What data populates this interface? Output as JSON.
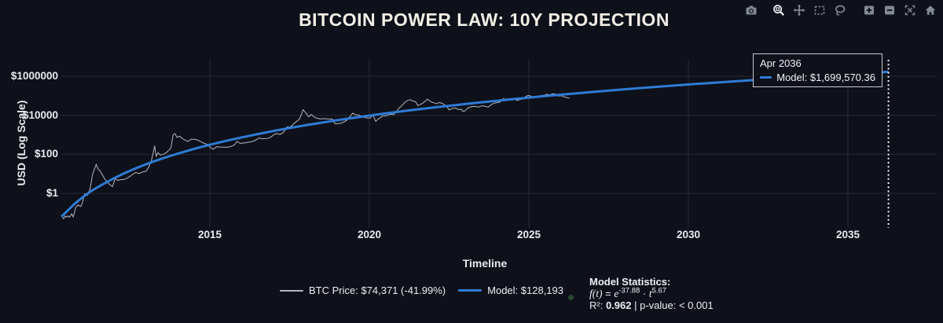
{
  "title": "BITCOIN POWER LAW: 10Y PROJECTION",
  "modebar": {
    "buttons": [
      {
        "id": "camera"
      },
      {
        "id": "zoom",
        "active": true
      },
      {
        "id": "pan"
      },
      {
        "id": "box-select"
      },
      {
        "id": "lasso"
      },
      {
        "id": "zoom-in"
      },
      {
        "id": "zoom-out"
      },
      {
        "id": "autoscale"
      },
      {
        "id": "home"
      }
    ]
  },
  "tooltip": {
    "date": "Apr 2036",
    "model_label": "Model: $1,699,570.36"
  },
  "legend": {
    "items": [
      {
        "name": "btc-price",
        "label": "BTC Price: $74,371 (-41.99%)",
        "color": "#b4b8bf"
      },
      {
        "name": "model",
        "label": "Model: $128,193",
        "color": "#2e7cd6"
      }
    ]
  },
  "stats": {
    "heading": "Model Statistics:",
    "f_left": "f(t)",
    "eq": " = ",
    "e": "e",
    "exp": "-37.88",
    "dot": " · ",
    "t": "t",
    "t_exp": "5.67",
    "r2_prefix": "R²: ",
    "r2": "0.962",
    "r2_suffix": " | p-value: < 0.001"
  },
  "colors": {
    "background": "#0e111a",
    "grid": "#252b37",
    "model": "#2e7cd6",
    "price": "#b4b8bf",
    "projection": "#f5f5f5",
    "tick_text": "#e8eaee",
    "modebar_icon": "#848a94",
    "modebar_active": "#e9ecf1"
  },
  "chart_data": {
    "type": "line",
    "title": "BITCOIN POWER LAW: 10Y PROJECTION",
    "xlabel": "Timeline",
    "ylabel": "USD (Log Scale)",
    "grid": true,
    "legend_position": "bottom",
    "x_ticks": [
      2015,
      2020,
      2025,
      2030,
      2035
    ],
    "y_ticks": [
      {
        "label": "$1",
        "value": 1
      },
      {
        "label": "$100",
        "value": 100
      },
      {
        "label": "$10000",
        "value": 10000
      },
      {
        "label": "$1000000",
        "value": 1000000
      }
    ],
    "x_range": [
      2010.3,
      2036.9
    ],
    "y_range_log10": [
      -1.65,
      6.89
    ],
    "projection": {
      "x": 2036.27,
      "date": "Apr 2036",
      "model_value": 1699570.36
    },
    "model_formula": {
      "ln_coefficient": -37.88,
      "exponent": 5.67,
      "r2": 0.962,
      "p_value": "< 0.001"
    },
    "series": [
      {
        "name": "BTC Price",
        "color": "#b4b8bf",
        "width": 1,
        "points": [
          [
            2010.37,
            0.06
          ],
          [
            2010.42,
            0.05
          ],
          [
            2010.46,
            0.07
          ],
          [
            2010.5,
            0.06
          ],
          [
            2010.55,
            0.07
          ],
          [
            2010.6,
            0.06
          ],
          [
            2010.67,
            0.09
          ],
          [
            2010.72,
            0.06
          ],
          [
            2010.8,
            0.2
          ],
          [
            2010.88,
            0.25
          ],
          [
            2010.95,
            0.21
          ],
          [
            2011.0,
            0.3
          ],
          [
            2011.08,
            0.95
          ],
          [
            2011.17,
            0.8
          ],
          [
            2011.25,
            1.8
          ],
          [
            2011.32,
            8.9
          ],
          [
            2011.44,
            31
          ],
          [
            2011.5,
            17
          ],
          [
            2011.56,
            14
          ],
          [
            2011.63,
            9
          ],
          [
            2011.72,
            5
          ],
          [
            2011.83,
            3.1
          ],
          [
            2011.95,
            2.2
          ],
          [
            2012.03,
            5.8
          ],
          [
            2012.1,
            4.6
          ],
          [
            2012.2,
            5.0
          ],
          [
            2012.33,
            5.2
          ],
          [
            2012.45,
            6.6
          ],
          [
            2012.6,
            9.8
          ],
          [
            2012.68,
            11.9
          ],
          [
            2012.78,
            10.3
          ],
          [
            2012.9,
            12.6
          ],
          [
            2013.0,
            13.4
          ],
          [
            2013.08,
            21
          ],
          [
            2013.17,
            47
          ],
          [
            2013.27,
            266
          ],
          [
            2013.32,
            78
          ],
          [
            2013.38,
            122
          ],
          [
            2013.45,
            91
          ],
          [
            2013.55,
            101
          ],
          [
            2013.65,
            127
          ],
          [
            2013.78,
            210
          ],
          [
            2013.85,
            1010
          ],
          [
            2013.91,
            1150
          ],
          [
            2013.97,
            735
          ],
          [
            2014.05,
            845
          ],
          [
            2014.15,
            625
          ],
          [
            2014.3,
            450
          ],
          [
            2014.42,
            590
          ],
          [
            2014.55,
            585
          ],
          [
            2014.68,
            480
          ],
          [
            2014.8,
            375
          ],
          [
            2014.93,
            320
          ],
          [
            2015.03,
            215
          ],
          [
            2015.1,
            180
          ],
          [
            2015.22,
            245
          ],
          [
            2015.35,
            235
          ],
          [
            2015.5,
            230
          ],
          [
            2015.63,
            240
          ],
          [
            2015.78,
            310
          ],
          [
            2015.85,
            460
          ],
          [
            2015.95,
            360
          ],
          [
            2016.1,
            385
          ],
          [
            2016.22,
            420
          ],
          [
            2016.35,
            455
          ],
          [
            2016.47,
            575
          ],
          [
            2016.55,
            690
          ],
          [
            2016.65,
            625
          ],
          [
            2016.78,
            640
          ],
          [
            2016.9,
            740
          ],
          [
            2017.0,
            995
          ],
          [
            2017.08,
            1150
          ],
          [
            2017.2,
            1050
          ],
          [
            2017.3,
            1280
          ],
          [
            2017.42,
            2550
          ],
          [
            2017.5,
            2450
          ],
          [
            2017.55,
            2750
          ],
          [
            2017.68,
            4350
          ],
          [
            2017.8,
            6150
          ],
          [
            2017.86,
            9800
          ],
          [
            2017.92,
            19500
          ],
          [
            2018.0,
            13900
          ],
          [
            2018.1,
            8300
          ],
          [
            2018.18,
            11100
          ],
          [
            2018.3,
            7600
          ],
          [
            2018.45,
            6450
          ],
          [
            2018.58,
            6700
          ],
          [
            2018.7,
            6450
          ],
          [
            2018.85,
            6350
          ],
          [
            2018.92,
            3700
          ],
          [
            2019.0,
            3690
          ],
          [
            2019.12,
            3950
          ],
          [
            2019.28,
            5300
          ],
          [
            2019.4,
            8800
          ],
          [
            2019.48,
            13000
          ],
          [
            2019.57,
            10600
          ],
          [
            2019.68,
            10100
          ],
          [
            2019.8,
            8200
          ],
          [
            2019.92,
            7250
          ],
          [
            2020.02,
            7150
          ],
          [
            2020.12,
            9900
          ],
          [
            2020.2,
            4900
          ],
          [
            2020.3,
            6850
          ],
          [
            2020.42,
            9150
          ],
          [
            2020.55,
            9450
          ],
          [
            2020.65,
            11500
          ],
          [
            2020.75,
            10700
          ],
          [
            2020.83,
            13800
          ],
          [
            2020.93,
            23500
          ],
          [
            2021.0,
            29000
          ],
          [
            2021.05,
            35500
          ],
          [
            2021.13,
            49000
          ],
          [
            2021.2,
            57500
          ],
          [
            2021.28,
            63200
          ],
          [
            2021.36,
            54000
          ],
          [
            2021.45,
            49000
          ],
          [
            2021.52,
            31500
          ],
          [
            2021.58,
            34500
          ],
          [
            2021.65,
            40000
          ],
          [
            2021.72,
            47500
          ],
          [
            2021.82,
            66900
          ],
          [
            2021.88,
            57000
          ],
          [
            2021.95,
            47000
          ],
          [
            2022.03,
            43500
          ],
          [
            2022.1,
            38500
          ],
          [
            2022.2,
            45200
          ],
          [
            2022.3,
            39500
          ],
          [
            2022.42,
            29500
          ],
          [
            2022.5,
            19000
          ],
          [
            2022.6,
            22500
          ],
          [
            2022.7,
            23500
          ],
          [
            2022.8,
            19500
          ],
          [
            2022.88,
            20500
          ],
          [
            2022.92,
            16000
          ],
          [
            2023.0,
            16800
          ],
          [
            2023.08,
            23200
          ],
          [
            2023.2,
            28000
          ],
          [
            2023.3,
            28500
          ],
          [
            2023.42,
            26300
          ],
          [
            2023.52,
            30500
          ],
          [
            2023.62,
            29200
          ],
          [
            2023.72,
            26200
          ],
          [
            2023.82,
            34800
          ],
          [
            2023.92,
            42200
          ],
          [
            2024.0,
            44500
          ],
          [
            2024.1,
            48000
          ],
          [
            2024.2,
            71500
          ],
          [
            2024.28,
            66500
          ],
          [
            2024.38,
            63500
          ],
          [
            2024.48,
            60500
          ],
          [
            2024.55,
            67800
          ],
          [
            2024.63,
            57500
          ],
          [
            2024.72,
            63000
          ],
          [
            2024.82,
            68500
          ],
          [
            2024.9,
            90500
          ],
          [
            2024.97,
            104000
          ],
          [
            2025.05,
            97500
          ],
          [
            2025.12,
            84500
          ],
          [
            2025.22,
            87500
          ],
          [
            2025.32,
            95500
          ],
          [
            2025.42,
            104500
          ],
          [
            2025.5,
            108500
          ],
          [
            2025.57,
            118500
          ],
          [
            2025.65,
            111500
          ],
          [
            2025.73,
            123500
          ],
          [
            2025.8,
            126200
          ],
          [
            2025.88,
            104500
          ],
          [
            2025.95,
            96000
          ],
          [
            2026.02,
            101500
          ],
          [
            2026.1,
            88500
          ],
          [
            2026.16,
            84500
          ],
          [
            2026.22,
            78500
          ],
          [
            2026.27,
            74371
          ]
        ]
      },
      {
        "name": "Model",
        "color": "#2e7cd6",
        "width": 3,
        "points": [
          [
            2010.35,
            0.064
          ],
          [
            2010.5,
            0.11
          ],
          [
            2010.75,
            0.28
          ],
          [
            2011,
            0.6
          ],
          [
            2011.25,
            1.21
          ],
          [
            2011.5,
            2.13
          ],
          [
            2011.75,
            3.6
          ],
          [
            2012,
            5.99
          ],
          [
            2012.25,
            9.4
          ],
          [
            2012.5,
            14.4
          ],
          [
            2012.75,
            21.3
          ],
          [
            2013,
            30.8
          ],
          [
            2013.25,
            43.5
          ],
          [
            2013.5,
            60
          ],
          [
            2013.75,
            81.5
          ],
          [
            2014,
            109
          ],
          [
            2014.5,
            188
          ],
          [
            2015,
            307
          ],
          [
            2015.5,
            484
          ],
          [
            2016,
            737
          ],
          [
            2016.5,
            1089
          ],
          [
            2017,
            1573
          ],
          [
            2017.5,
            2222
          ],
          [
            2018,
            3074
          ],
          [
            2018.5,
            4177
          ],
          [
            2019,
            5591
          ],
          [
            2019.5,
            7376
          ],
          [
            2020,
            9598
          ],
          [
            2020.5,
            12345
          ],
          [
            2021,
            15715
          ],
          [
            2021.5,
            19815
          ],
          [
            2022,
            24742
          ],
          [
            2022.5,
            30647
          ],
          [
            2023,
            37659
          ],
          [
            2023.5,
            45959
          ],
          [
            2024,
            55733
          ],
          [
            2024.5,
            67117
          ],
          [
            2025,
            80348
          ],
          [
            2025.5,
            95644
          ],
          [
            2026,
            113258
          ],
          [
            2026.5,
            134246
          ],
          [
            2027,
            156658
          ],
          [
            2028,
            213922
          ],
          [
            2029,
            286473
          ],
          [
            2030,
            377768
          ],
          [
            2031,
            491380
          ],
          [
            2032,
            631554
          ],
          [
            2033,
            803443
          ],
          [
            2034,
            1013178
          ],
          [
            2035,
            1266304
          ],
          [
            2036,
            1568418
          ],
          [
            2036.27,
            1699570.36
          ]
        ]
      }
    ]
  }
}
